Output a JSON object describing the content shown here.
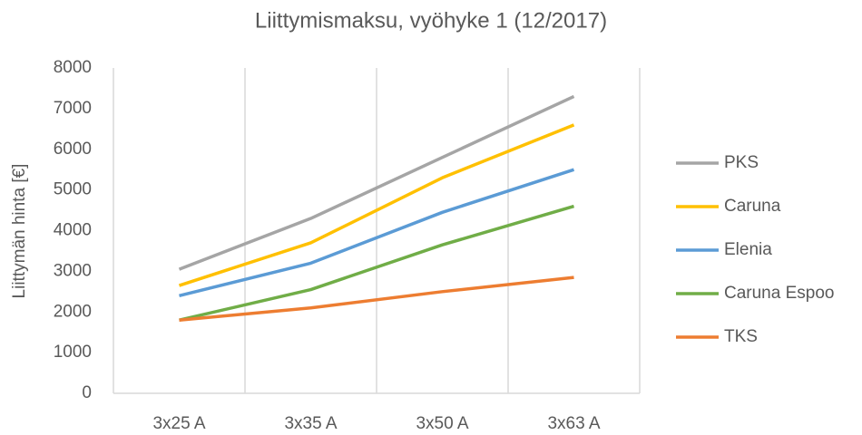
{
  "chart_data": {
    "type": "line",
    "title": "Liittymismaksu, vyöhyke 1 (12/2017)",
    "y_label": "Liittymän hinta [€]",
    "categories": [
      "3x25 A",
      "3x35 A",
      "3x50 A",
      "3x63 A"
    ],
    "series": [
      {
        "name": "PKS",
        "color": "#a5a5a5",
        "values": [
          3050,
          4300,
          5800,
          7300
        ]
      },
      {
        "name": "Caruna",
        "color": "#ffc000",
        "values": [
          2650,
          3700,
          5300,
          6600
        ]
      },
      {
        "name": "Elenia",
        "color": "#5b9bd5",
        "values": [
          2400,
          3200,
          4450,
          5500
        ]
      },
      {
        "name": "Caruna Espoo",
        "color": "#70ad47",
        "values": [
          1800,
          2550,
          3650,
          4600
        ]
      },
      {
        "name": "TKS",
        "color": "#ed7d31",
        "values": [
          1800,
          2100,
          2500,
          2850
        ]
      }
    ],
    "ylim": [
      0,
      8000
    ],
    "yticks": [
      0,
      1000,
      2000,
      3000,
      4000,
      5000,
      6000,
      7000,
      8000
    ],
    "grid": "x",
    "legend": "right"
  }
}
